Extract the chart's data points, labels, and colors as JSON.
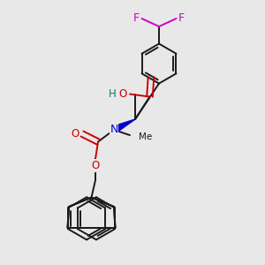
{
  "colors": {
    "carbon": "#1a1a1a",
    "oxygen": "#cc0000",
    "nitrogen": "#0000cc",
    "fluorine": "#cc00cc",
    "hydrogen_label": "#008080",
    "background": "#e8e8e8"
  },
  "layout": {
    "figsize": [
      3.0,
      3.0
    ],
    "dpi": 100,
    "xlim": [
      0,
      1
    ],
    "ylim": [
      0,
      1
    ]
  }
}
